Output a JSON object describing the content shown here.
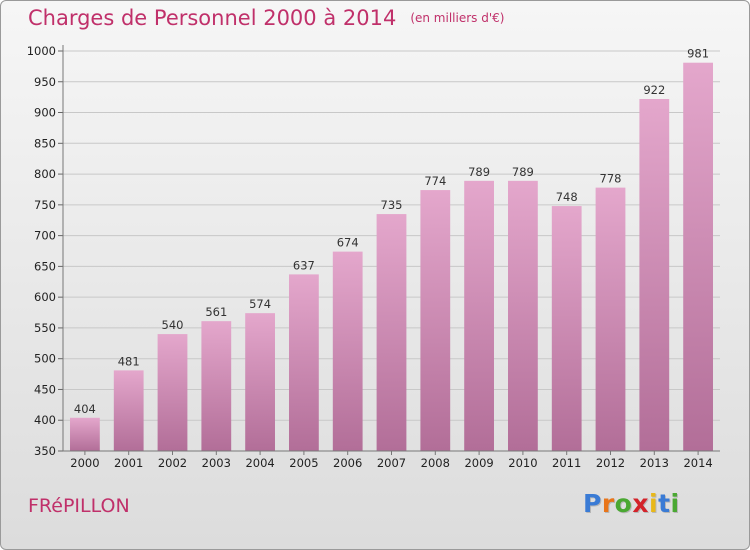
{
  "header": {
    "title": "Charges de Personnel 2000 à 2014",
    "subtitle": "(en milliers d'€)"
  },
  "footer": {
    "city": "FRéPILLON",
    "brand": "Proxiti"
  },
  "colors": {
    "accent": "#c0306a",
    "bar_top": "#e4a7cc",
    "bar_bottom": "#b26e98",
    "logo_letters": [
      "#3a7bd5",
      "#e8751a",
      "#4aa832",
      "#d3232a",
      "#e8b81a",
      "#3a7bd5",
      "#4aa832"
    ]
  },
  "chart_data": {
    "type": "bar",
    "title": "Charges de Personnel 2000 à 2014",
    "subtitle": "(en milliers d'€)",
    "categories": [
      "2000",
      "2001",
      "2002",
      "2003",
      "2004",
      "2005",
      "2006",
      "2007",
      "2008",
      "2009",
      "2010",
      "2011",
      "2012",
      "2013",
      "2014"
    ],
    "values": [
      404,
      481,
      540,
      561,
      574,
      637,
      674,
      735,
      774,
      789,
      789,
      748,
      778,
      922,
      981
    ],
    "ylim": [
      350,
      1000
    ],
    "yticks": [
      350,
      400,
      450,
      500,
      550,
      600,
      650,
      700,
      750,
      800,
      850,
      900,
      950,
      1000
    ],
    "grid": true,
    "data_labels": true
  }
}
